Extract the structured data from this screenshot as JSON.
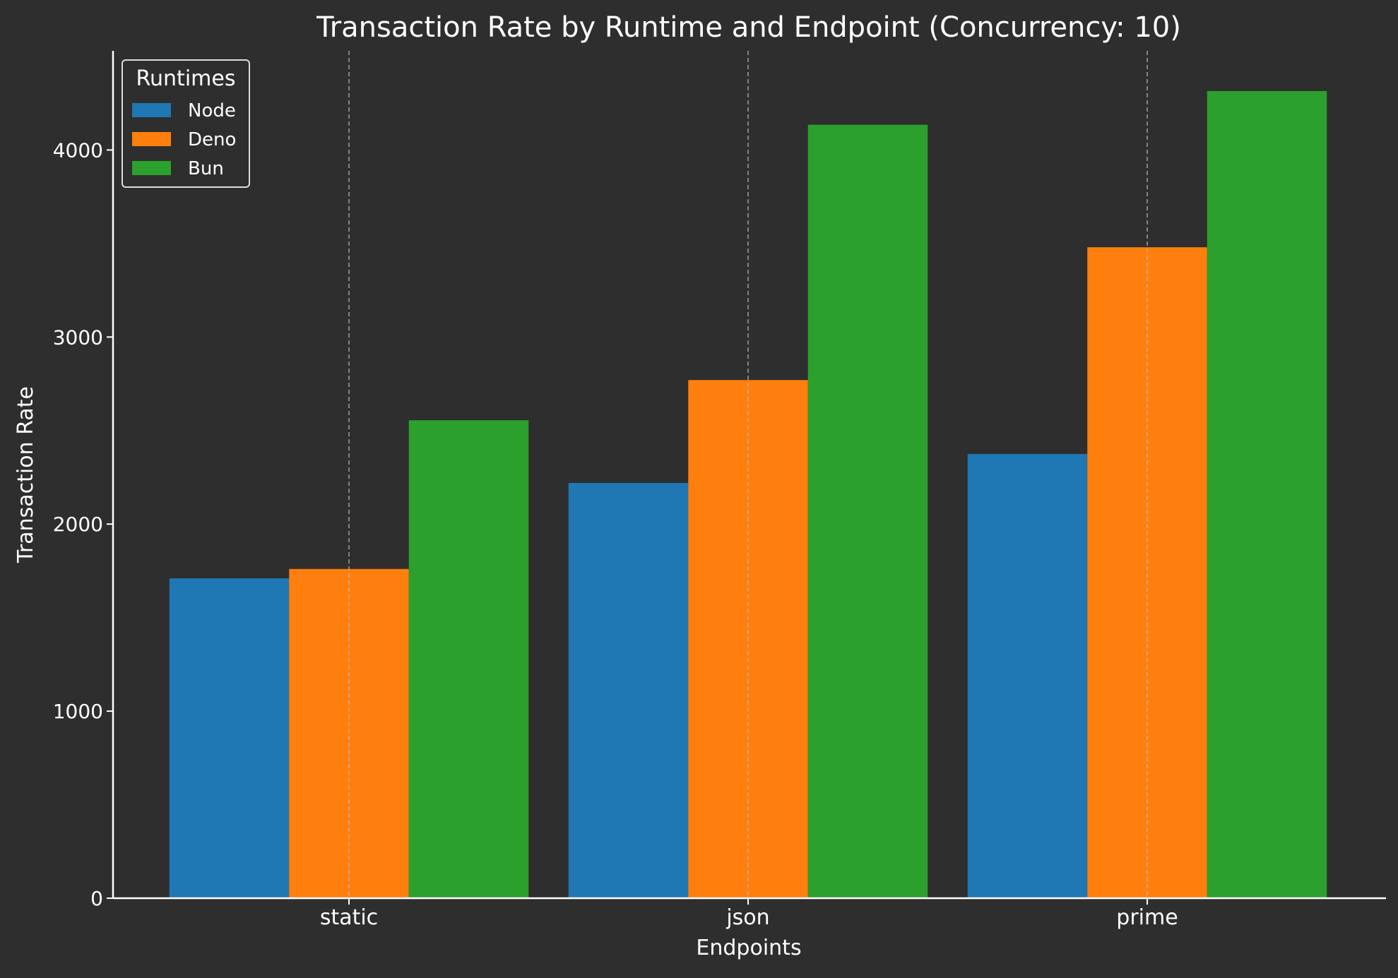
{
  "chart_data": {
    "type": "bar",
    "title": "Transaction Rate by Runtime and Endpoint (Concurrency: 10)",
    "xlabel": "Endpoints",
    "ylabel": "Transaction Rate",
    "categories": [
      "static",
      "json",
      "prime"
    ],
    "series": [
      {
        "name": "Node",
        "color": "#1f77b4",
        "values": [
          1710,
          2220,
          2375
        ]
      },
      {
        "name": "Deno",
        "color": "#ff7f0e",
        "values": [
          1760,
          2770,
          3480
        ]
      },
      {
        "name": "Bun",
        "color": "#2ca02c",
        "values": [
          2555,
          4135,
          4315
        ]
      }
    ],
    "ylim": [
      0,
      4530
    ],
    "yticks": [
      0,
      1000,
      2000,
      3000,
      4000
    ],
    "legend": {
      "title": "Runtimes",
      "placement": "top-left"
    },
    "grid": {
      "x": true,
      "y": false,
      "style": "dashed"
    },
    "colors": {
      "background": "#2e2e2e",
      "axis": "#ffffff",
      "grid": "#bbbbbb"
    }
  }
}
